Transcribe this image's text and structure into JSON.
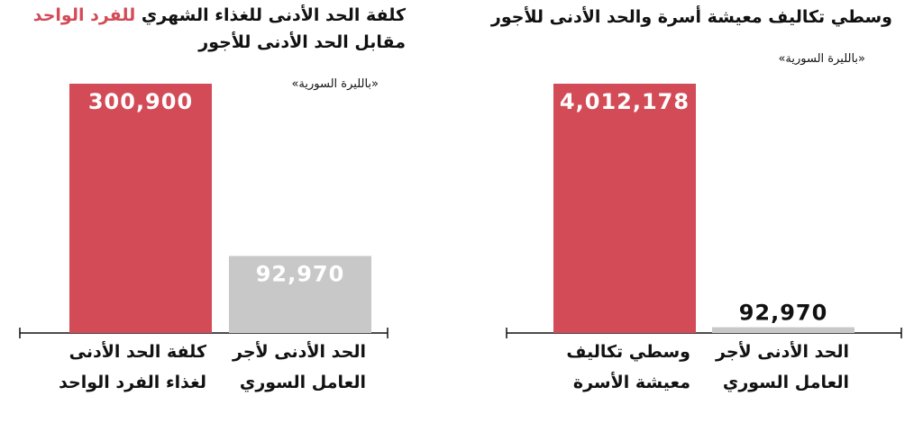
{
  "chart_data": [
    {
      "type": "bar",
      "title": "كلفة الحد الأدنى للغذاء الشهري",
      "title_highlight": "للفرد الواحد",
      "title_line2": "مقابل الحد الأدنى للأجور",
      "subtitle": "«بالليرة السورية»",
      "categories": [
        [
          "كلفة الحد الأدنى",
          "لغذاء الفرد الواحد"
        ],
        [
          "الحد الأدنى لأجر",
          "العامل السوري"
        ]
      ],
      "values": [
        300900,
        92970
      ],
      "value_labels": [
        "300,900",
        "92,970"
      ],
      "colors": [
        "#d24b57",
        "#c8c8c8"
      ],
      "highlight_color": "#d24b57"
    },
    {
      "type": "bar",
      "title": "وسطي تكاليف معيشة أسرة والحد الأدنى للأجور",
      "subtitle": "«بالليرة السورية»",
      "categories": [
        [
          "وسطي تكاليف",
          "معيشة الأسرة"
        ],
        [
          "الحد الأدنى لأجر",
          "العامل السوري"
        ]
      ],
      "values": [
        4012178,
        92970
      ],
      "value_labels": [
        "4,012,178",
        "92,970"
      ],
      "colors": [
        "#d24b57",
        "#c8c8c8"
      ]
    }
  ]
}
